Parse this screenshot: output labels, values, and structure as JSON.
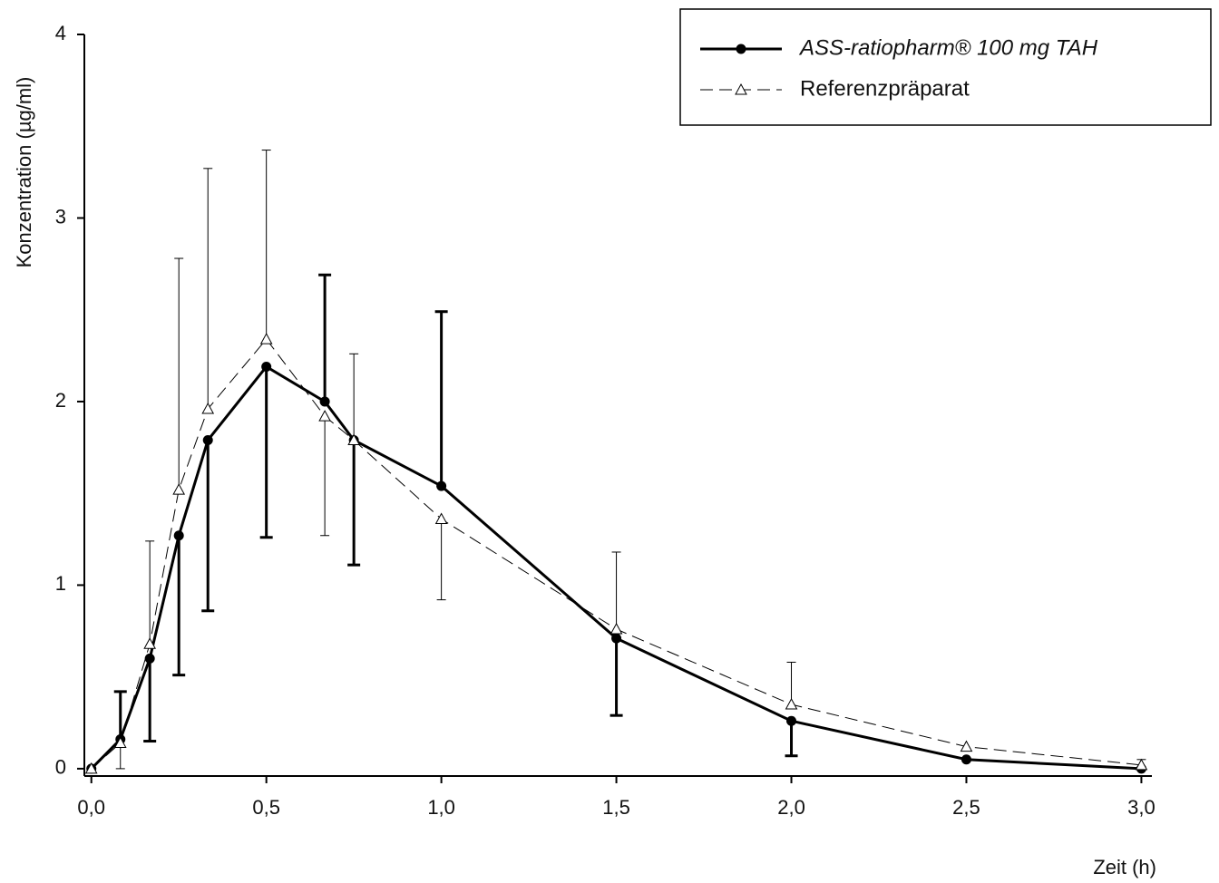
{
  "chart_data": {
    "type": "line",
    "x_label": "Zeit (h)",
    "y_label": "Konzentration (µg/ml)",
    "x": [
      0,
      0.083,
      0.167,
      0.25,
      0.333,
      0.5,
      0.667,
      0.75,
      1.0,
      1.5,
      2.0,
      2.5,
      3.0
    ],
    "xlim": [
      -0.02,
      3.03
    ],
    "xticks": [
      {
        "value": 0,
        "label": "0,0"
      },
      {
        "value": 0.5,
        "label": "0,5"
      },
      {
        "value": 1,
        "label": "1,0"
      },
      {
        "value": 1.5,
        "label": "1,5"
      },
      {
        "value": 2,
        "label": "2,0"
      },
      {
        "value": 2.5,
        "label": "2,5"
      },
      {
        "value": 3,
        "label": "3,0"
      }
    ],
    "ylim": [
      -0.04,
      4
    ],
    "yticks": [
      0,
      1,
      2,
      3,
      4
    ],
    "legend": "upper right",
    "series": [
      {
        "name": "ASS-ratiopharm® 100 mg TAH",
        "color": "#000000",
        "line_width": 3,
        "dashed": false,
        "marker": "filled-circle",
        "values": [
          0,
          0.16,
          0.6,
          1.27,
          1.79,
          2.19,
          2.0,
          1.79,
          1.54,
          0.71,
          0.26,
          0.05,
          0.0
        ],
        "error_upper": [
          null,
          0.26,
          null,
          null,
          null,
          null,
          0.69,
          null,
          0.95,
          null,
          null,
          null,
          null
        ],
        "error_lower": [
          null,
          null,
          0.45,
          0.76,
          0.93,
          0.93,
          null,
          0.68,
          null,
          0.42,
          0.19,
          null,
          null
        ]
      },
      {
        "name": "Referenzpräparat",
        "color": "#000000",
        "line_width": 1,
        "dashed": true,
        "marker": "open-triangle",
        "values": [
          0,
          0.14,
          0.68,
          1.52,
          1.96,
          2.34,
          1.92,
          1.79,
          1.36,
          0.76,
          0.35,
          0.12,
          0.02
        ],
        "error_upper": [
          null,
          null,
          0.56,
          1.26,
          1.31,
          1.03,
          null,
          0.47,
          null,
          0.42,
          0.23,
          null,
          0.03
        ],
        "error_lower": [
          null,
          0.14,
          null,
          null,
          null,
          null,
          0.65,
          null,
          0.44,
          null,
          null,
          null,
          null
        ]
      }
    ]
  }
}
